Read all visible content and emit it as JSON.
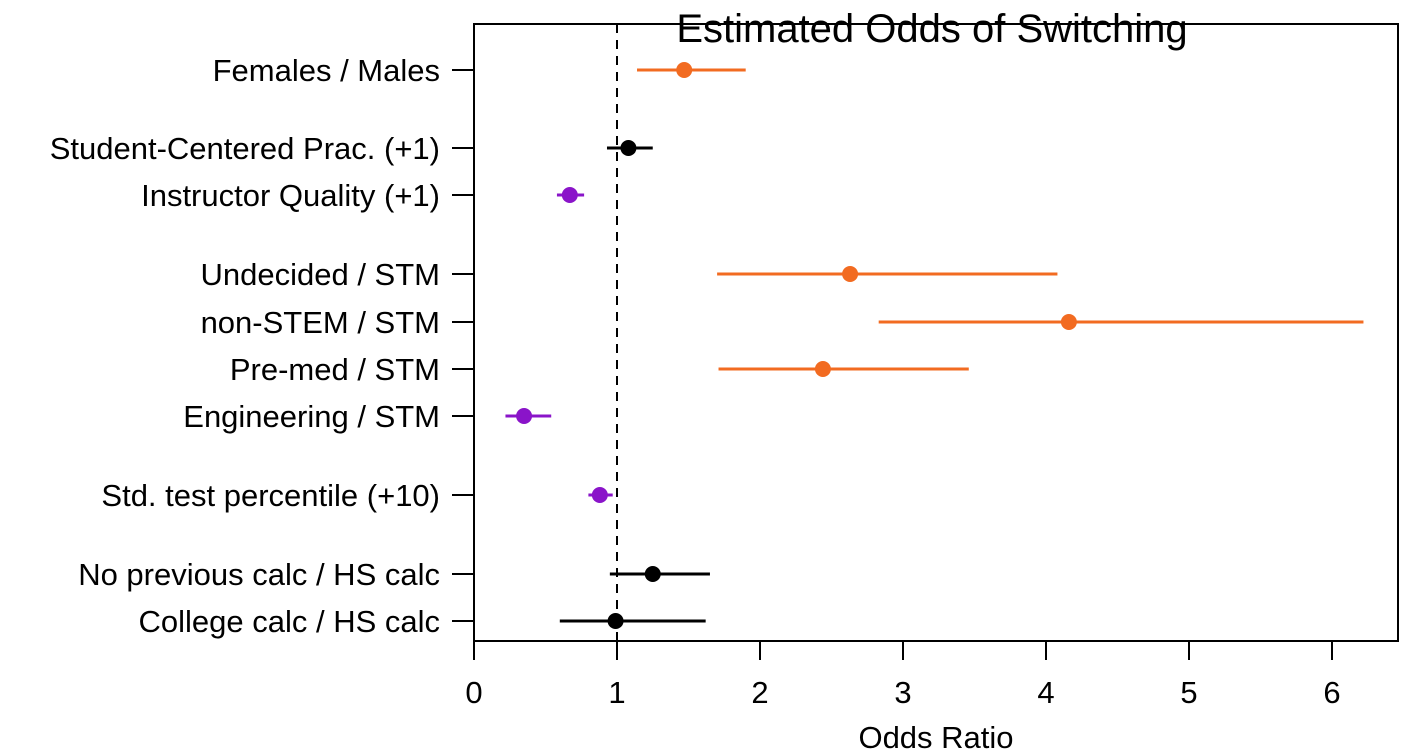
{
  "chart_data": {
    "type": "scatter",
    "title": "Estimated Odds of Switching",
    "xlabel": "Odds Ratio",
    "ylabel": "",
    "xlim": [
      0,
      6.5
    ],
    "xticks": [
      0,
      1,
      2,
      3,
      4,
      5,
      6
    ],
    "reference_line": 1,
    "grid": false,
    "error_bars": true,
    "colors": {
      "higher": "#F26B21",
      "lower": "#8A14C9",
      "ns": "#000000"
    },
    "rows": [
      {
        "label": "Females / Males",
        "estimate": 1.47,
        "lower": 1.14,
        "upper": 1.9,
        "color": "#F26B21"
      },
      {
        "label": "Student-Centered Prac. (+1)",
        "estimate": 1.08,
        "lower": 0.93,
        "upper": 1.25,
        "color": "#000000"
      },
      {
        "label": "Instructor Quality (+1)",
        "estimate": 0.67,
        "lower": 0.58,
        "upper": 0.77,
        "color": "#8A14C9"
      },
      {
        "label": "Undecided / STM",
        "estimate": 2.63,
        "lower": 1.7,
        "upper": 4.08,
        "color": "#F26B21"
      },
      {
        "label": "non-STEM / STM",
        "estimate": 4.16,
        "lower": 2.83,
        "upper": 6.22,
        "color": "#F26B21"
      },
      {
        "label": "Pre-med / STM",
        "estimate": 2.44,
        "lower": 1.71,
        "upper": 3.46,
        "color": "#F26B21"
      },
      {
        "label": "Engineering / STM",
        "estimate": 0.35,
        "lower": 0.22,
        "upper": 0.54,
        "color": "#8A14C9"
      },
      {
        "label": "Std. test percentile (+10)",
        "estimate": 0.88,
        "lower": 0.8,
        "upper": 0.97,
        "color": "#8A14C9"
      },
      {
        "label": "No previous calc / HS calc",
        "estimate": 1.25,
        "lower": 0.95,
        "upper": 1.65,
        "color": "#000000"
      },
      {
        "label": "College calc / HS calc",
        "estimate": 0.99,
        "lower": 0.6,
        "upper": 1.62,
        "color": "#000000"
      }
    ]
  }
}
